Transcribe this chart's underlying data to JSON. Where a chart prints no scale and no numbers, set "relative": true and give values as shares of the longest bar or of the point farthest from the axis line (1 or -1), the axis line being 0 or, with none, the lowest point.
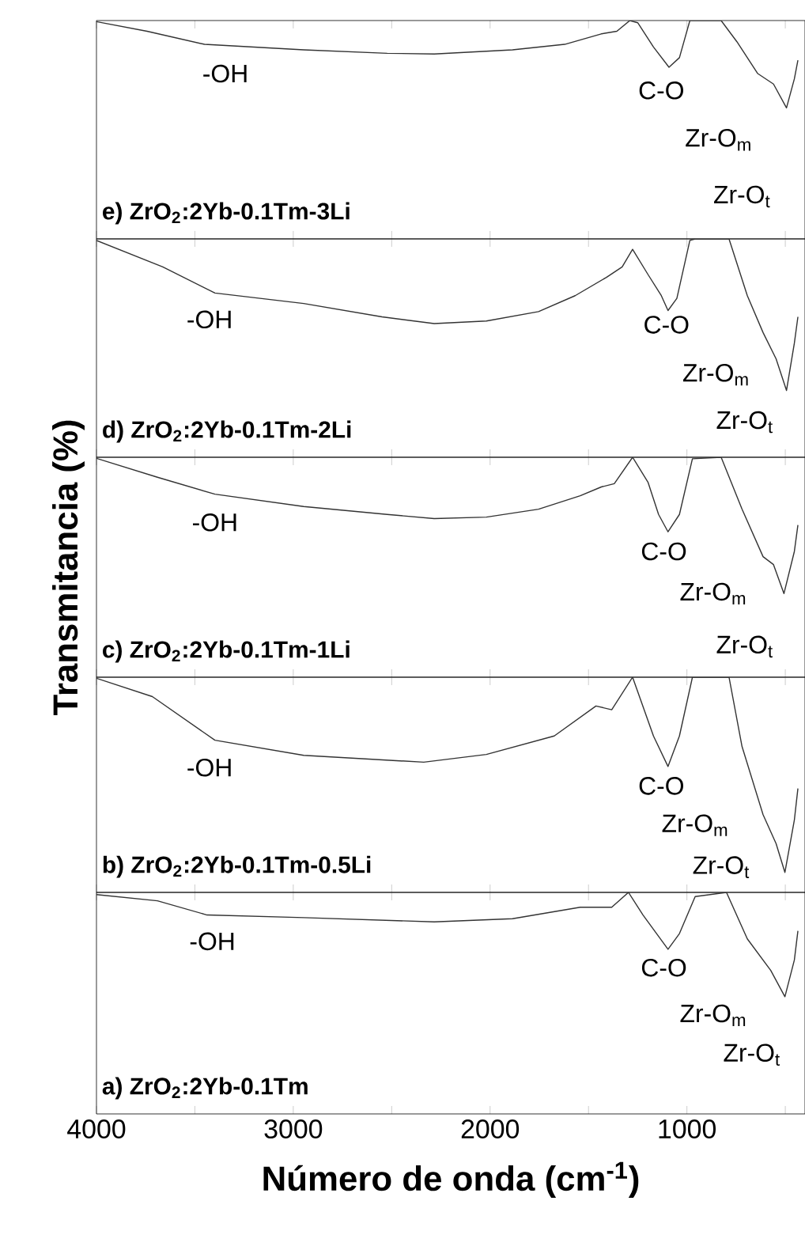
{
  "chart_data": [
    {
      "type": "line",
      "title": "e) ZrO$_{2}$:2Yb-0.1Tm-3Li",
      "relative": true,
      "tick_labels": false,
      "color": "#333333",
      "xlim": [
        4000,
        400
      ],
      "xticks": [
        4000,
        {
          "value": 3500,
          "label": null
        },
        3000,
        {
          "value": 2500,
          "label": null
        },
        2000,
        {
          "value": 1500,
          "label": null
        },
        1000,
        {
          "value": 500,
          "label": null
        }
      ],
      "x": [
        4000,
        3743,
        3451,
        2947,
        2523,
        2284,
        1886,
        1621,
        1435,
        1356,
        1290,
        1250,
        1170,
        1091,
        1038,
        985,
        826,
        746,
        640,
        560,
        494,
        454,
        436
      ],
      "values": [
        0.995,
        0.951,
        0.891,
        0.866,
        0.85,
        0.847,
        0.866,
        0.891,
        0.939,
        0.951,
        1.0,
        0.99,
        0.879,
        0.786,
        0.83,
        1.0,
        1.0,
        0.903,
        0.757,
        0.709,
        0.6,
        0.733,
        0.818
      ],
      "annotations": [
        "-OH",
        "C-O",
        "Zr-O$_{m}$",
        "Zr-O$_{t}$"
      ]
    },
    {
      "type": "line",
      "title": "d) ZrO$_{2}$:2Yb-0.1Tm-2Li",
      "relative": true,
      "tick_labels": false,
      "color": "#333333",
      "xlim": [
        4000,
        400
      ],
      "xticks": [
        4000,
        {
          "value": 3500,
          "label": null
        },
        3000,
        {
          "value": 2500,
          "label": null
        },
        2000,
        {
          "value": 1500,
          "label": null
        },
        1000,
        {
          "value": 500,
          "label": null
        }
      ],
      "x": [
        4000,
        3663,
        3398,
        2947,
        2549,
        2284,
        2019,
        1754,
        1568,
        1409,
        1329,
        1276,
        1197,
        1130,
        1096,
        1051,
        985,
        958,
        786,
        693,
        613,
        547,
        494,
        454,
        436
      ],
      "values": [
        0.993,
        0.872,
        0.752,
        0.704,
        0.643,
        0.612,
        0.624,
        0.667,
        0.74,
        0.824,
        0.872,
        0.952,
        0.836,
        0.74,
        0.672,
        0.728,
        0.993,
        1.0,
        1.0,
        0.74,
        0.571,
        0.451,
        0.306,
        0.523,
        0.643
      ],
      "annotations": [
        "-OH",
        "C-O",
        "Zr-O$_{m}$",
        "Zr-O$_{t}$"
      ]
    },
    {
      "type": "line",
      "title": "c) ZrO$_{2}$:2Yb-0.1Tm-1Li",
      "ylabel": "Transmitancia (%)",
      "relative": true,
      "tick_labels": false,
      "color": "#333333",
      "xlim": [
        4000,
        400
      ],
      "xticks": [
        4000,
        {
          "value": 3500,
          "label": null
        },
        3000,
        {
          "value": 2500,
          "label": null
        },
        2000,
        {
          "value": 1500,
          "label": null
        },
        1000,
        {
          "value": 500,
          "label": null
        }
      ],
      "x": [
        4000,
        3690,
        3398,
        2947,
        2523,
        2284,
        2019,
        1754,
        1542,
        1435,
        1369,
        1276,
        1197,
        1144,
        1096,
        1038,
        972,
        826,
        720,
        613,
        560,
        507,
        454,
        436
      ],
      "values": [
        0.995,
        0.909,
        0.832,
        0.776,
        0.74,
        0.721,
        0.728,
        0.764,
        0.825,
        0.865,
        0.88,
        1.0,
        0.885,
        0.74,
        0.661,
        0.74,
        0.993,
        1.0,
        0.764,
        0.548,
        0.512,
        0.38,
        0.572,
        0.692
      ],
      "annotations": [
        "-OH",
        "C-O",
        "Zr-O$_{m}$",
        "Zr-O$_{t}$"
      ]
    },
    {
      "type": "line",
      "title": "b) ZrO$_{2}$:2Yb-0.1Tm-0.5Li",
      "relative": true,
      "tick_labels": false,
      "color": "#333333",
      "xlim": [
        4000,
        400
      ],
      "xticks": [
        4000,
        {
          "value": 3500,
          "label": null
        },
        3000,
        {
          "value": 2500,
          "label": null
        },
        2000,
        {
          "value": 1500,
          "label": null
        },
        1000,
        {
          "value": 500,
          "label": null
        }
      ],
      "x": [
        4000,
        3716,
        3398,
        2947,
        2337,
        2019,
        1674,
        1462,
        1382,
        1276,
        1170,
        1096,
        1038,
        972,
        786,
        720,
        613,
        547,
        502,
        454,
        436
      ],
      "values": [
        0.995,
        0.91,
        0.707,
        0.637,
        0.605,
        0.641,
        0.727,
        0.866,
        0.849,
        1.0,
        0.727,
        0.585,
        0.727,
        1.0,
        1.0,
        0.678,
        0.361,
        0.227,
        0.093,
        0.337,
        0.483
      ],
      "annotations": [
        "-OH",
        "C-O",
        "Zr-O$_{m}$",
        "Zr-O$_{t}$"
      ]
    },
    {
      "type": "line",
      "title": "a) ZrO$_{2}$:2Yb-0.1Tm",
      "xlabel": "Número de onda (cm$^{-1}$)",
      "relative": true,
      "tick_labels": "x",
      "color": "#333333",
      "xlim": [
        4000,
        400
      ],
      "xticks": [
        4000,
        {
          "value": 3500,
          "label": null
        },
        3000,
        {
          "value": 2500,
          "label": null
        },
        2000,
        {
          "value": 1500,
          "label": null
        },
        1000,
        {
          "value": 500,
          "label": null
        }
      ],
      "x": [
        4000,
        3690,
        3438,
        2947,
        2284,
        1886,
        1542,
        1382,
        1297,
        1223,
        1096,
        1038,
        958,
        799,
        693,
        574,
        502,
        454,
        436
      ],
      "values": [
        0.99,
        0.962,
        0.898,
        0.886,
        0.867,
        0.881,
        0.933,
        0.933,
        1.0,
        0.898,
        0.743,
        0.814,
        0.981,
        1.0,
        0.79,
        0.648,
        0.529,
        0.695,
        0.826
      ],
      "annotations": [
        "-OH",
        "C-O",
        "Zr-O$_{m}$",
        "Zr-O$_{t}$"
      ]
    }
  ]
}
